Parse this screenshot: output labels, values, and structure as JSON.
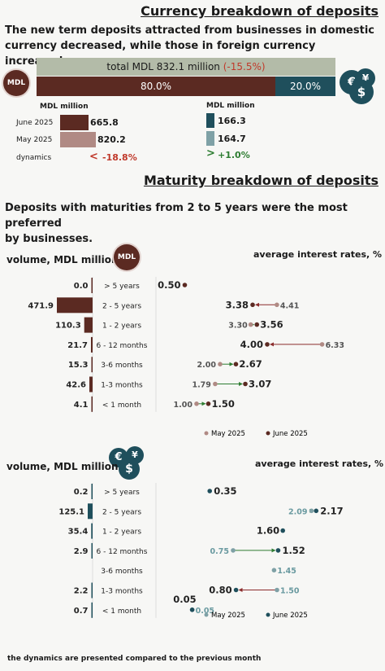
{
  "section1": {
    "title": "Currency breakdown of deposits",
    "intro_line1": "The new term deposits attracted from businesses in domestic",
    "intro_line2": "currency decreased, while those in foreign currency increased.",
    "mdl_badge": "MDL",
    "total_label": "total MDL 832.1 million",
    "total_change": "(-15.5%)",
    "share_mdl": "80.0%",
    "share_fx": "20.0%",
    "unit_mdl": "MDL million",
    "unit_fx": "MDL million",
    "row_june": "June 2025",
    "row_may": "May 2025",
    "row_dyn": "dynamics",
    "mdl_june": "665.8",
    "mdl_may": "820.2",
    "mdl_dyn": "-18.8%",
    "fx_june": "166.3",
    "fx_may": "164.7",
    "fx_dyn": "+1.0%"
  },
  "section2": {
    "title": "Maturity breakdown of deposits",
    "intro_line1": "Deposits with maturities from 2 to 5 years were the most preferred",
    "intro_line2": "by businesses.",
    "volume_label": "volume, MDL million",
    "rates_label": "average interest rates, %",
    "legend_may": "May 2025",
    "legend_june": "June 2025"
  },
  "section3": {
    "volume_label": "volume, MDL million",
    "rates_label": "average interest rates, %",
    "legend_may": "May 2025",
    "legend_june": "June 2025",
    "footnote": "the dynamics are presented compared to the previous month"
  },
  "colors": {
    "mdl_dark": "#5b2a22",
    "mdl_light": "#b08a84",
    "fx_dark": "#1f4f5c",
    "fx_light": "#7fa1a6",
    "total_bar": "#b3bba8",
    "negative": "#c0392b",
    "positive": "#2e7d32"
  },
  "chart_data": [
    {
      "type": "bar",
      "title": "volume, MDL million",
      "categories": [
        "> 5 years",
        "2 - 5 years",
        "1 - 2 years",
        "6 - 12 months",
        "3-6 months",
        "1-3 months",
        "< 1 month"
      ],
      "series": [
        {
          "values": [
            0.0,
            471.9,
            110.3,
            21.7,
            15.3,
            42.6,
            4.1
          ]
        }
      ],
      "value_labels": [
        "0.0",
        "471.9",
        "110.3",
        "21.7",
        "15.3",
        "42.6",
        "4.1"
      ]
    },
    {
      "type": "scatter",
      "title": "average interest rates, %",
      "categories": [
        "> 5 years",
        "2 - 5 years",
        "1 - 2 years",
        "6 - 12 months",
        "3-6 months",
        "1-3 months",
        "< 1 month"
      ],
      "series": [
        {
          "name": "May 2025",
          "values": [
            null,
            4.41,
            3.3,
            6.33,
            2.0,
            1.79,
            1.0
          ],
          "labels": [
            "",
            "4.41",
            "3.30",
            "6.33",
            "2.00",
            "1.79",
            "1.00"
          ]
        },
        {
          "name": "June 2025",
          "values": [
            0.5,
            3.38,
            3.56,
            4.0,
            2.67,
            3.07,
            1.5
          ],
          "labels": [
            "0.50",
            "3.38",
            "3.56",
            "4.00",
            "2.67",
            "3.07",
            "1.50"
          ]
        }
      ]
    },
    {
      "type": "bar",
      "title": "volume, MDL million",
      "categories": [
        "> 5 years",
        "2 - 5 years",
        "1 - 2 years",
        "6 - 12 months",
        "3-6 months",
        "1-3 months",
        "< 1 month"
      ],
      "series": [
        {
          "values": [
            0.2,
            125.1,
            35.4,
            2.9,
            null,
            2.2,
            0.7
          ]
        }
      ],
      "value_labels": [
        "0.2",
        "125.1",
        "35.4",
        "2.9",
        "",
        "2.2",
        "0.7"
      ]
    },
    {
      "type": "scatter",
      "title": "average interest rates, %",
      "categories": [
        "> 5 years",
        "2 - 5 years",
        "1 - 2 years",
        "6 - 12 months",
        "3-6 months",
        "1-3 months",
        "< 1 month"
      ],
      "series": [
        {
          "name": "May 2025",
          "values": [
            null,
            2.09,
            null,
            0.75,
            1.45,
            1.5,
            0.05
          ],
          "labels": [
            "",
            "2.09",
            "",
            "0.75",
            "1.45",
            "1.50",
            "0.05"
          ]
        },
        {
          "name": "June 2025",
          "values": [
            0.35,
            2.17,
            1.6,
            1.52,
            null,
            0.8,
            0.05
          ],
          "labels": [
            "0.35",
            "2.17",
            "1.60",
            "1.52",
            "",
            "0.80",
            "0.05"
          ]
        }
      ]
    }
  ]
}
